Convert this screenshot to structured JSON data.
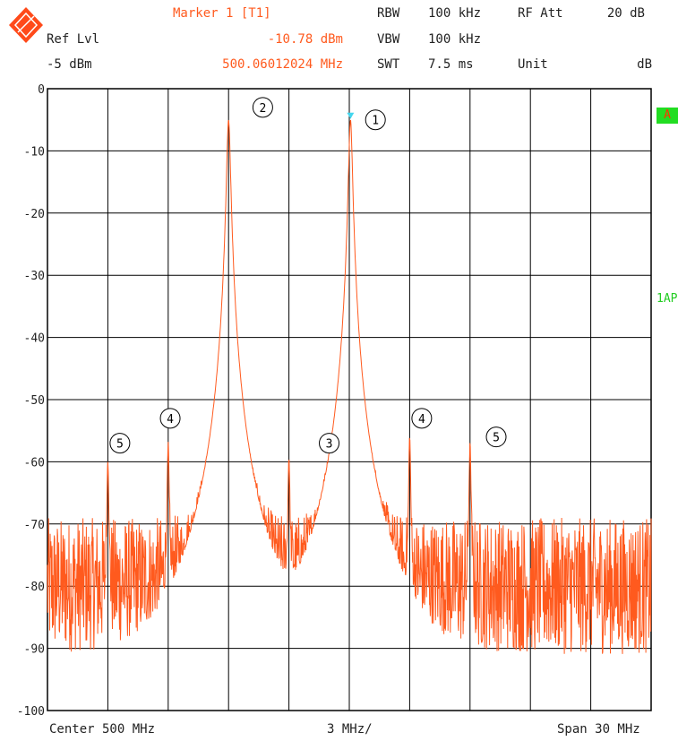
{
  "header": {
    "marker_title": "Marker 1 [T1]",
    "marker_level": "-10.78 dBm",
    "marker_freq": "500.06012024 MHz",
    "ref_lvl_label": "Ref Lvl",
    "ref_lvl_value": "-5 dBm",
    "rbw_label": "RBW",
    "rbw_value": "100 kHz",
    "vbw_label": "VBW",
    "vbw_value": "100 kHz",
    "swt_label": "SWT",
    "swt_value": "7.5 ms",
    "rf_att_label": "RF Att",
    "rf_att_value": "20 dB",
    "unit_label": "Unit",
    "unit_value": "dB"
  },
  "side_labels": {
    "trace_a": "A",
    "trace_mode": "1AP"
  },
  "footer": {
    "center": "Center 500 MHz",
    "per_div": "3 MHz/",
    "span": "Span 30 MHz"
  },
  "colors": {
    "trace": "#ff5a1e",
    "marker_tri": "#44d6ee",
    "badge_bg": "#22dd22",
    "badge_fg": "#ff3300"
  },
  "chart_data": {
    "type": "line",
    "ylim": [
      -100,
      0
    ],
    "xlim": [
      485,
      515
    ],
    "x_unit": "MHz",
    "y_unit": "dB",
    "grid": true,
    "y_ticks": [
      "0",
      "-10",
      "-20",
      "-30",
      "-40",
      "-50",
      "-60",
      "-70",
      "-80",
      "-90",
      "-100"
    ],
    "noise_floor": -80,
    "peaks": [
      {
        "label": "1",
        "freq": 500.06,
        "level": -5
      },
      {
        "label": "2",
        "freq": 494.0,
        "level": -5
      },
      {
        "label": "3",
        "freq": 497.0,
        "level": -59.5
      },
      {
        "label": "4",
        "freq": 491.0,
        "level": -57
      },
      {
        "label": "4",
        "freq": 503.0,
        "level": -56
      },
      {
        "label": "5",
        "freq": 488.0,
        "level": -60
      },
      {
        "label": "5",
        "freq": 506.0,
        "level": -57
      }
    ],
    "markers": [
      {
        "label": "1",
        "freq": 501.3,
        "level": -5
      },
      {
        "label": "2",
        "freq": 495.7,
        "level": -3
      },
      {
        "label": "3",
        "freq": 499.0,
        "level": -57
      },
      {
        "label": "4",
        "freq": 491.1,
        "level": -53
      },
      {
        "label": "4",
        "freq": 503.6,
        "level": -53
      },
      {
        "label": "5",
        "freq": 488.6,
        "level": -57
      },
      {
        "label": "5",
        "freq": 507.3,
        "level": -56
      }
    ]
  }
}
